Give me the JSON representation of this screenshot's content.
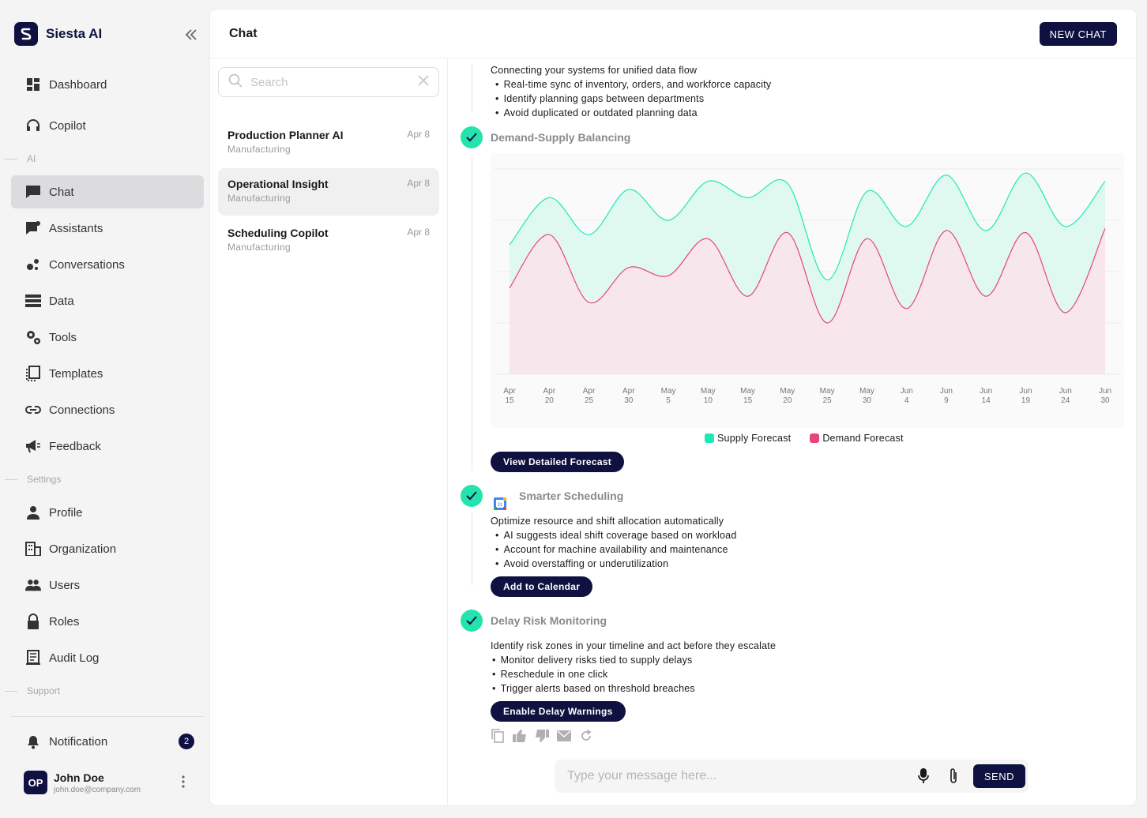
{
  "app": {
    "name": "Siesta AI"
  },
  "sidebar": {
    "items": [
      {
        "label": "Dashboard",
        "icon": "dashboard-icon"
      },
      {
        "label": "Copilot",
        "icon": "headset-icon"
      },
      {
        "label": "Chat",
        "icon": "chat-icon",
        "active": true
      },
      {
        "label": "Assistants",
        "icon": "assistant-icon"
      },
      {
        "label": "Conversations",
        "icon": "conversations-icon"
      },
      {
        "label": "Data",
        "icon": "data-icon"
      },
      {
        "label": "Tools",
        "icon": "tools-icon"
      },
      {
        "label": "Templates",
        "icon": "templates-icon"
      },
      {
        "label": "Connections",
        "icon": "link-icon"
      },
      {
        "label": "Feedback",
        "icon": "megaphone-icon"
      },
      {
        "label": "Profile",
        "icon": "person-icon"
      },
      {
        "label": "Organization",
        "icon": "building-icon"
      },
      {
        "label": "Users",
        "icon": "users-icon"
      },
      {
        "label": "Roles",
        "icon": "lock-icon"
      },
      {
        "label": "Audit Log",
        "icon": "audit-icon"
      }
    ],
    "sections": {
      "ai": "AI",
      "settings": "Settings",
      "support": "Support"
    },
    "notification": {
      "label": "Notification",
      "count": "2"
    },
    "user": {
      "initials": "OP",
      "name": "John Doe",
      "email": "john.doe@company.com"
    }
  },
  "header": {
    "title": "Chat",
    "new_chat": "NEW CHAT"
  },
  "search": {
    "placeholder": "Search"
  },
  "conversations": [
    {
      "title": "Production Planner AI",
      "subtitle": "Manufacturing",
      "date": "Apr 8"
    },
    {
      "title": "Operational Insight",
      "subtitle": "Manufacturing",
      "date": "Apr 8",
      "active": true
    },
    {
      "title": "Scheduling Copilot",
      "subtitle": "Manufacturing",
      "date": "Apr 8"
    }
  ],
  "messages": {
    "intro": {
      "text": "Connecting your systems for unified data flow",
      "bullets": [
        "Real-time sync of inventory, orders, and workforce capacity",
        "Identify planning gaps between departments",
        "Avoid duplicated or outdated planning data"
      ]
    },
    "demand": {
      "title": "Demand-Supply Balancing",
      "button": "View Detailed Forecast"
    },
    "scheduling": {
      "title": "Smarter Scheduling",
      "text": "Optimize resource and shift allocation automatically",
      "bullets": [
        "AI suggests ideal shift coverage based on workload",
        "Account for machine availability and maintenance",
        "Avoid overstaffing or underutilization"
      ],
      "button": "Add to Calendar"
    },
    "delay": {
      "title": "Delay Risk Monitoring",
      "text": "Identify risk zones in your timeline and act before they escalate",
      "bullets": [
        "Monitor delivery risks tied to supply delays",
        "Reschedule in one click",
        "Trigger alerts based on threshold breaches"
      ],
      "button": "Enable Delay Warnings"
    }
  },
  "composer": {
    "placeholder": "Type your message here...",
    "send": "SEND"
  },
  "colors": {
    "accent": "#0f1140",
    "supply": "#1de9b6",
    "demand": "#e8447a",
    "check": "#24e3ad"
  },
  "chart_data": {
    "type": "area",
    "x": [
      "Apr 15",
      "Apr 20",
      "Apr 25",
      "Apr 30",
      "May 5",
      "May 10",
      "May 15",
      "May 20",
      "May 25",
      "May 30",
      "Jun 4",
      "Jun 9",
      "Jun 14",
      "Jun 19",
      "Jun 24",
      "Jun 30"
    ],
    "series": [
      {
        "name": "Supply Forecast",
        "values": [
          63,
          86,
          68,
          90,
          75,
          94,
          86,
          93,
          46,
          89,
          72,
          97,
          70,
          98,
          72,
          94
        ]
      },
      {
        "name": "Demand Forecast",
        "values": [
          42,
          68,
          35,
          52,
          48,
          66,
          38,
          69,
          25,
          66,
          32,
          70,
          38,
          69,
          30,
          71
        ]
      }
    ],
    "ylim": [
      0,
      100
    ],
    "grid": true,
    "legend": "bottom"
  }
}
